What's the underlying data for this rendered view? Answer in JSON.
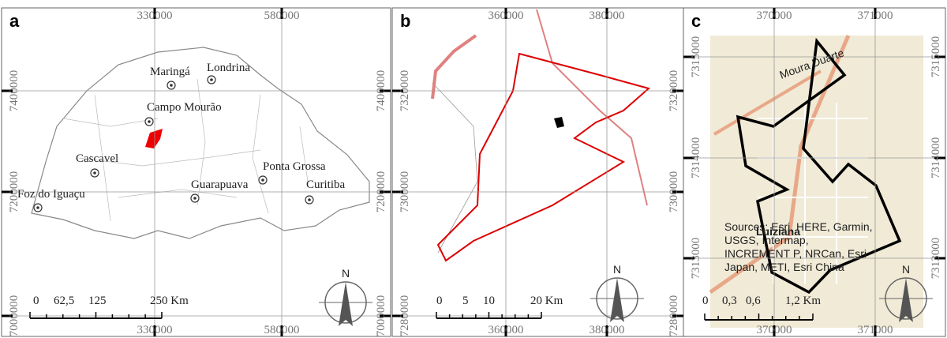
{
  "panels": [
    {
      "letter": "a",
      "x_ticks": [
        "330000",
        "580000"
      ],
      "y_ticks": [
        "7400000",
        "7200000",
        "7000000"
      ],
      "places": [
        "Maringá",
        "Londrina",
        "Campo Mourão",
        "Cascavel",
        "Ponta Grossa",
        "Foz do Iguaçu",
        "Guarapuava",
        "Curitiba"
      ],
      "scale_labels": [
        "0",
        "62,5",
        "125",
        "250 Km"
      ],
      "north": "N"
    },
    {
      "letter": "b",
      "x_ticks": [
        "360000",
        "380000"
      ],
      "y_ticks": [
        "7320000",
        "7300000",
        "7280000"
      ],
      "scale_labels": [
        "0",
        "5",
        "10",
        "20 Km"
      ],
      "north": "N"
    },
    {
      "letter": "c",
      "x_ticks": [
        "370000",
        "371000"
      ],
      "y_ticks": [
        "7315000",
        "7314000",
        "7313000"
      ],
      "places": [
        "Moura Duarte",
        "Luiziana"
      ],
      "sources": [
        "Sources: Esri, HERE, Garmin,",
        "USGS, Intermap,",
        "INCREMENT P, NRCan, Esri",
        "Japan, METI, Esri China"
      ],
      "scale_labels": [
        "0",
        "0,3",
        "0,6",
        "1,2 Km"
      ],
      "north": "N"
    }
  ]
}
